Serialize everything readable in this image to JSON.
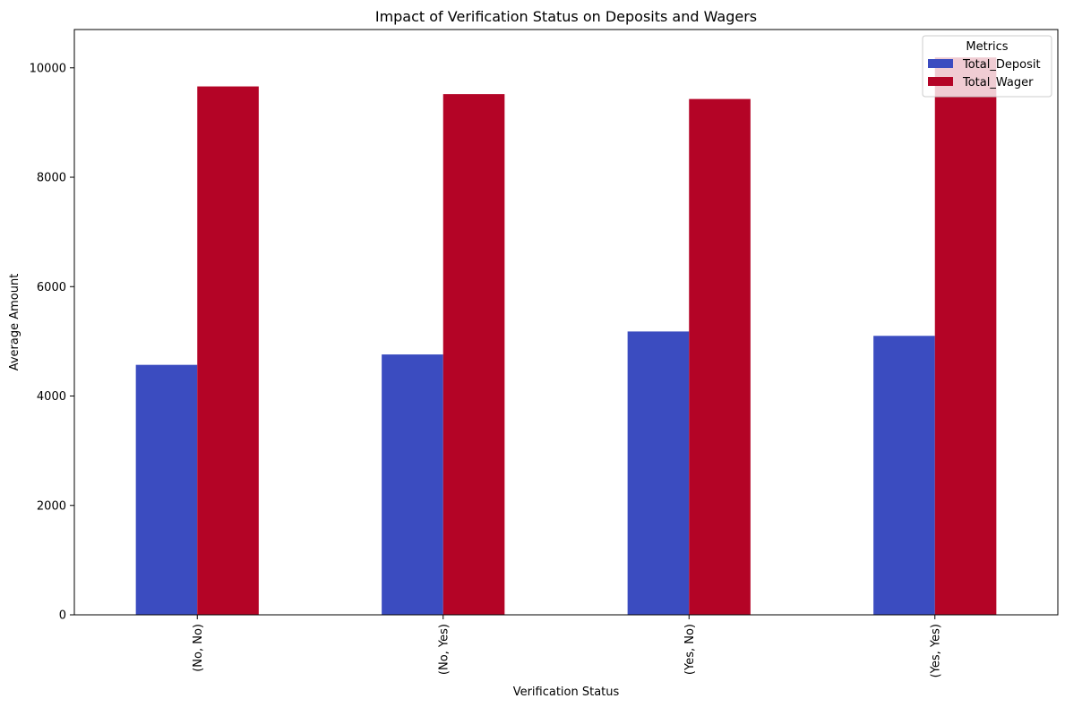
{
  "chart_data": {
    "type": "bar",
    "title": "Impact of Verification Status on Deposits and Wagers",
    "xlabel": "Verification Status",
    "ylabel": "Average Amount",
    "categories": [
      "(No, No)",
      "(No, Yes)",
      "(Yes, No)",
      "(Yes, Yes)"
    ],
    "series": [
      {
        "name": "Total_Deposit",
        "color": "#3b4cc0",
        "values": [
          4570,
          4760,
          5180,
          5100
        ]
      },
      {
        "name": "Total_Wager",
        "color": "#b40426",
        "values": [
          9660,
          9520,
          9430,
          10190
        ]
      }
    ],
    "ylim": [
      0,
      10700
    ],
    "yticks": [
      0,
      2000,
      4000,
      6000,
      8000,
      10000
    ],
    "grid": false,
    "legend": {
      "title": "Metrics",
      "position": "top-right"
    }
  }
}
